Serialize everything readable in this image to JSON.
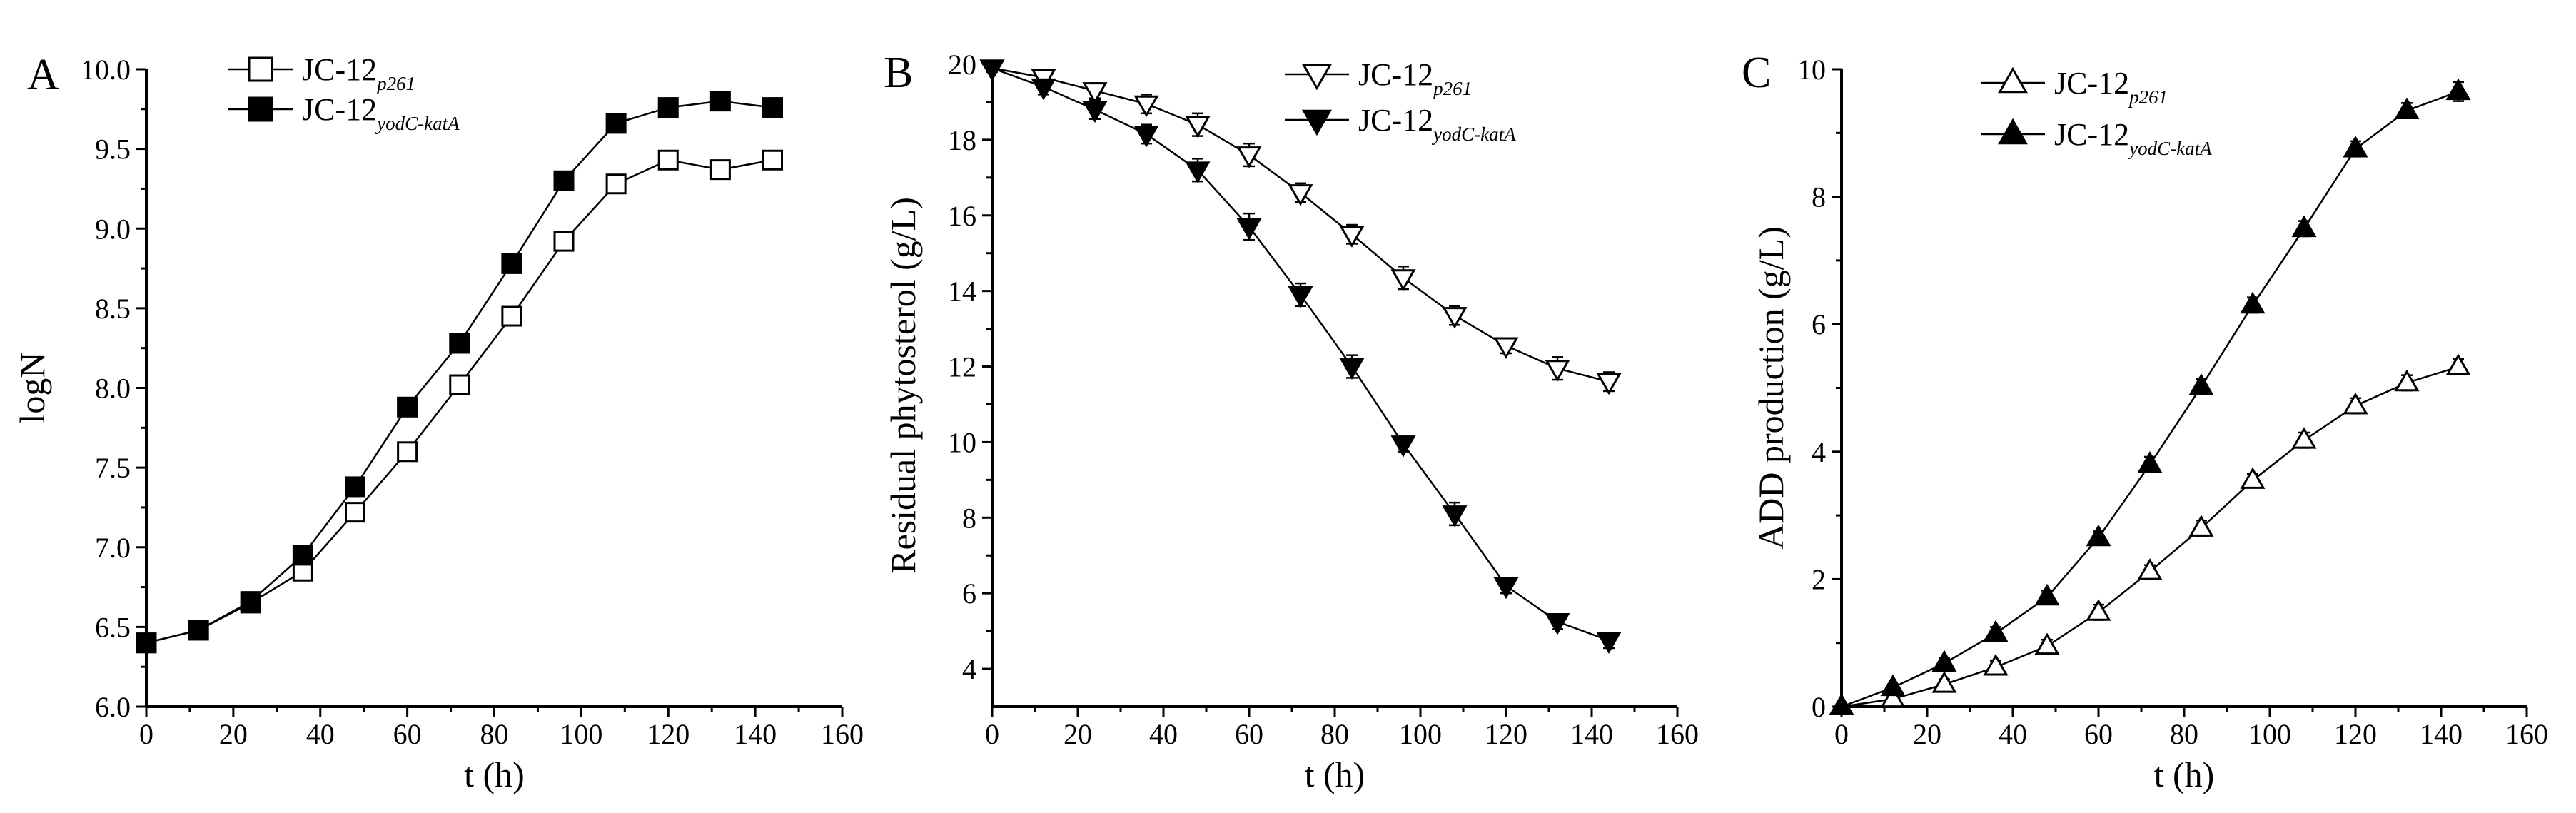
{
  "chart_data": [
    {
      "type": "line",
      "panel": "A",
      "title": "",
      "xlabel": "t (h)",
      "ylabel": "logN",
      "xlim": [
        0,
        160
      ],
      "ylim": [
        6.0,
        10.0
      ],
      "xticks": [
        0,
        20,
        40,
        60,
        80,
        100,
        120,
        140,
        160
      ],
      "yticks": [
        6.0,
        6.5,
        7.0,
        7.5,
        8.0,
        8.5,
        9.0,
        9.5,
        10.0
      ],
      "ytick_decimals": 1,
      "legend_position": "top-center",
      "series": [
        {
          "name": "JC-12",
          "subscript": "p261",
          "marker": "square",
          "filled": false,
          "x": [
            0,
            12,
            24,
            36,
            48,
            60,
            72,
            84,
            96,
            108,
            120,
            132,
            144
          ],
          "y": [
            6.4,
            6.48,
            6.65,
            6.85,
            7.22,
            7.6,
            8.02,
            8.45,
            8.92,
            9.28,
            9.43,
            9.37,
            9.43
          ],
          "err": [
            0.02,
            0.02,
            0.03,
            0.03,
            0.04,
            0.03,
            0.05,
            0.05,
            0.03,
            0.04,
            0.04,
            0.05,
            0.03
          ]
        },
        {
          "name": "JC-12",
          "subscript": "yodC-katA",
          "marker": "square",
          "filled": true,
          "x": [
            0,
            12,
            24,
            36,
            48,
            60,
            72,
            84,
            96,
            108,
            120,
            132,
            144
          ],
          "y": [
            6.4,
            6.48,
            6.66,
            6.95,
            7.38,
            7.88,
            8.28,
            8.78,
            9.3,
            9.66,
            9.76,
            9.8,
            9.76
          ],
          "err": [
            0.02,
            0.02,
            0.03,
            0.03,
            0.03,
            0.03,
            0.05,
            0.03,
            0.03,
            0.03,
            0.03,
            0.03,
            0.03
          ]
        }
      ]
    },
    {
      "type": "line",
      "panel": "B",
      "title": "",
      "xlabel": "t (h)",
      "ylabel": "Residual phytosterol (g/L)",
      "xlim": [
        0,
        160
      ],
      "ylim": [
        3,
        20
      ],
      "xticks": [
        0,
        20,
        40,
        60,
        80,
        100,
        120,
        140,
        160
      ],
      "yticks": [
        4,
        6,
        8,
        10,
        12,
        14,
        16,
        18,
        20
      ],
      "ytick_decimals": 0,
      "legend_position": "top-right",
      "series": [
        {
          "name": "JC-12",
          "subscript": "p261",
          "marker": "triangle-down",
          "filled": false,
          "x": [
            0,
            12,
            24,
            36,
            48,
            60,
            72,
            84,
            96,
            108,
            120,
            132,
            144
          ],
          "y": [
            19.9,
            19.65,
            19.3,
            18.95,
            18.4,
            17.6,
            16.6,
            15.5,
            14.35,
            13.35,
            12.55,
            11.95,
            11.6
          ],
          "err": [
            0.1,
            0.2,
            0.2,
            0.25,
            0.3,
            0.3,
            0.25,
            0.25,
            0.3,
            0.25,
            0.2,
            0.3,
            0.25
          ]
        },
        {
          "name": "JC-12",
          "subscript": "yodC-katA",
          "marker": "triangle-down",
          "filled": true,
          "x": [
            0,
            12,
            24,
            36,
            48,
            60,
            72,
            84,
            96,
            108,
            120,
            132,
            144
          ],
          "y": [
            19.9,
            19.4,
            18.8,
            18.15,
            17.2,
            15.7,
            13.9,
            12.0,
            9.95,
            8.1,
            6.2,
            5.25,
            4.75
          ],
          "err": [
            0.1,
            0.2,
            0.25,
            0.25,
            0.3,
            0.35,
            0.3,
            0.3,
            0.2,
            0.3,
            0.2,
            0.2,
            0.2
          ]
        }
      ]
    },
    {
      "type": "line",
      "panel": "C",
      "title": "",
      "xlabel": "t (h)",
      "ylabel": "ADD production (g/L)",
      "xlim": [
        0,
        160
      ],
      "ylim": [
        0,
        10
      ],
      "xticks": [
        0,
        20,
        40,
        60,
        80,
        100,
        120,
        140,
        160
      ],
      "yticks": [
        0,
        2,
        4,
        6,
        8,
        10
      ],
      "ytick_decimals": 0,
      "legend_position": "top-center",
      "series": [
        {
          "name": "JC-12",
          "subscript": "p261",
          "marker": "triangle-up",
          "filled": false,
          "x": [
            0,
            12,
            24,
            36,
            48,
            60,
            72,
            84,
            96,
            108,
            120,
            132,
            144
          ],
          "y": [
            0.0,
            0.12,
            0.35,
            0.62,
            0.95,
            1.48,
            2.12,
            2.8,
            3.55,
            4.18,
            4.72,
            5.08,
            5.33
          ],
          "err": [
            0.02,
            0.05,
            0.08,
            0.1,
            0.1,
            0.12,
            0.1,
            0.12,
            0.1,
            0.12,
            0.12,
            0.12,
            0.12
          ]
        },
        {
          "name": "JC-12",
          "subscript": "yodC-katA",
          "marker": "triangle-up",
          "filled": true,
          "x": [
            0,
            12,
            24,
            36,
            48,
            60,
            72,
            84,
            96,
            108,
            120,
            132,
            144
          ],
          "y": [
            0.0,
            0.3,
            0.68,
            1.15,
            1.72,
            2.65,
            3.8,
            5.02,
            6.3,
            7.5,
            8.75,
            9.35,
            9.65
          ],
          "err": [
            0.02,
            0.05,
            0.08,
            0.1,
            0.1,
            0.1,
            0.12,
            0.12,
            0.12,
            0.12,
            0.12,
            0.12,
            0.15
          ]
        }
      ]
    }
  ]
}
